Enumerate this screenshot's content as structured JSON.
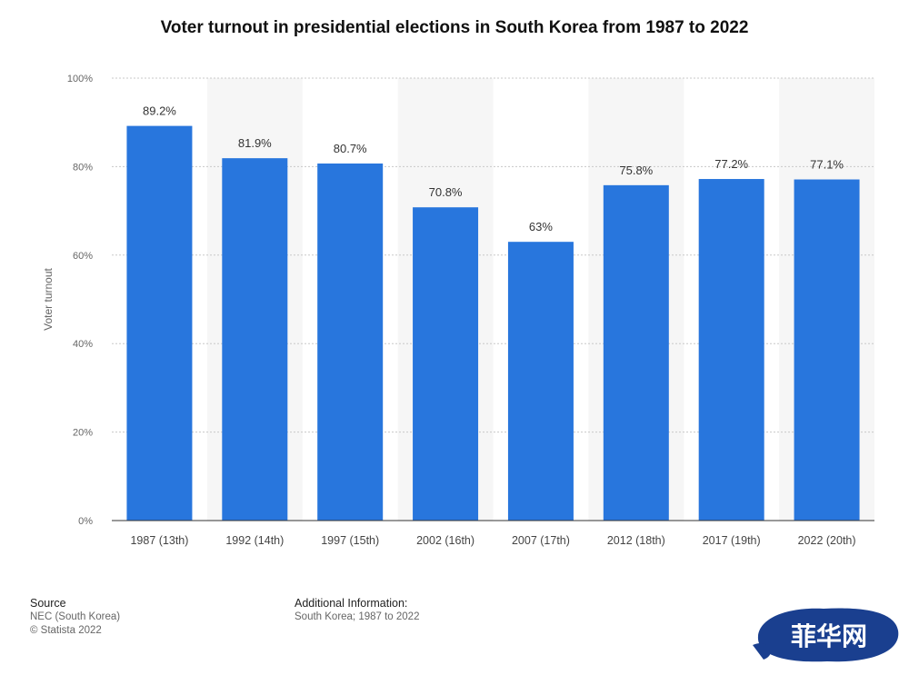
{
  "chart_data": {
    "type": "bar",
    "title": "Voter turnout in presidential elections in South Korea from 1987 to 2022",
    "xlabel": "",
    "ylabel": "Voter turnout",
    "categories": [
      "1987 (13th)",
      "1992 (14th)",
      "1997 (15th)",
      "2002 (16th)",
      "2007 (17th)",
      "2012 (18th)",
      "2017 (19th)",
      "2022 (20th)"
    ],
    "values": [
      89.2,
      81.9,
      80.7,
      70.8,
      63,
      75.8,
      77.2,
      77.1
    ],
    "value_labels": [
      "89.2%",
      "81.9%",
      "80.7%",
      "70.8%",
      "63%",
      "75.8%",
      "77.2%",
      "77.1%"
    ],
    "ylim": [
      0,
      100
    ],
    "yticks": [
      0,
      20,
      40,
      60,
      80,
      100
    ],
    "ytick_labels": [
      "0%",
      "20%",
      "40%",
      "60%",
      "80%",
      "100%"
    ],
    "grid": true,
    "bar_color": "#2876dd"
  },
  "footer": {
    "source_heading": "Source",
    "source_lines": [
      "NEC (South Korea)",
      "© Statista 2022"
    ],
    "info_heading": "Additional Information:",
    "info_line": "South Korea; 1987 to 2022"
  },
  "watermark": {
    "text": "菲华网"
  }
}
